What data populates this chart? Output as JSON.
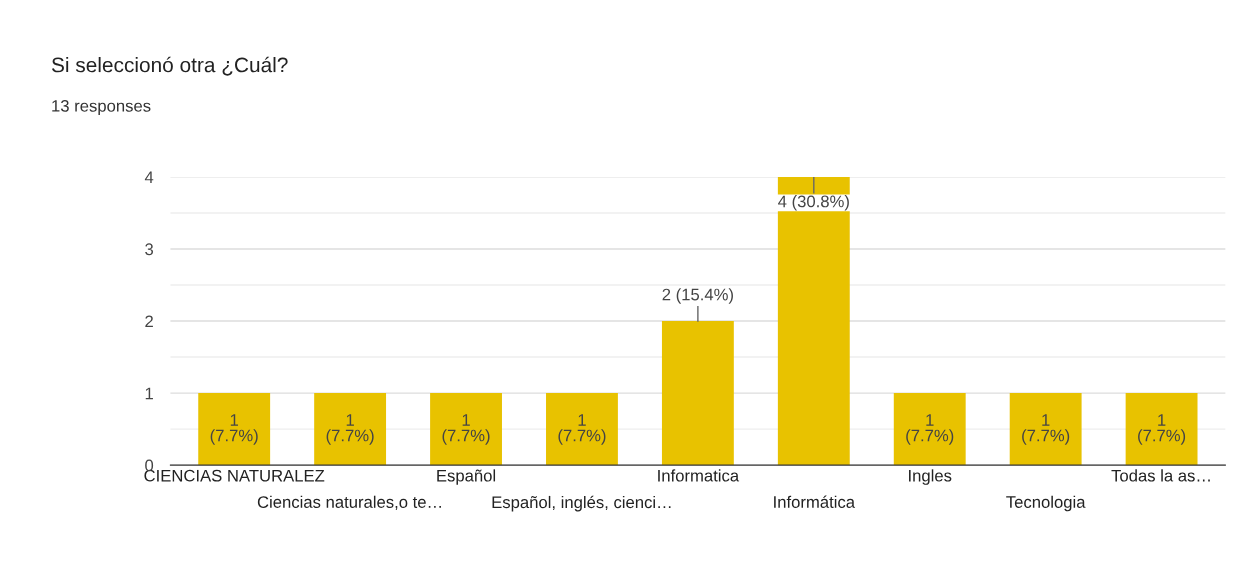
{
  "chart_data": {
    "type": "bar",
    "title": "Si seleccionó otra ¿Cuál?",
    "subtitle": "13 responses",
    "categories": [
      "CIENCIAS NATURALEZ",
      "Ciencias naturales,o te…",
      "Español",
      "Español, inglés, cienci…",
      "Informatica",
      "Informática",
      "Ingles",
      "Tecnologia",
      "Todas la as…"
    ],
    "values": [
      1,
      1,
      1,
      1,
      2,
      4,
      1,
      1,
      1
    ],
    "value_labels": [
      "1 (7.7%)",
      "1 (7.7%)",
      "1 (7.7%)",
      "1 (7.7%)",
      "2 (15.4%)",
      "4 (30.8%)",
      "1 (7.7%)",
      "1 (7.7%)",
      "1 (7.7%)"
    ],
    "color": "#e8c200",
    "ylim": [
      0,
      4
    ],
    "yticks": [
      0,
      1,
      2,
      3,
      4
    ],
    "grid": "y"
  }
}
